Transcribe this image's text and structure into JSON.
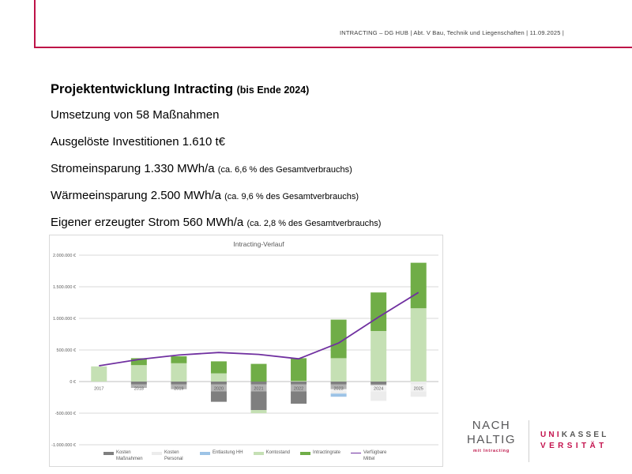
{
  "header": {
    "meta": "INTRACTING – DG HUB |  Abt. V Bau, Technik und Liegenschaften |  11.09.2025 |"
  },
  "content": {
    "title": "Projektentwicklung Intracting ",
    "title_suffix": "(bis Ende 2024)",
    "lines": [
      {
        "main": "Umsetzung von 58 Maßnahmen",
        "small": ""
      },
      {
        "main": "Ausgelöste Investitionen 1.610 t€",
        "small": ""
      },
      {
        "main": "Stromeinsparung 1.330 MWh/a ",
        "small": "(ca. 6,6 % des Gesamtverbrauchs)"
      },
      {
        "main": "Wärmeeinsparung 2.500 MWh/a ",
        "small": "(ca. 9,6 % des Gesamtverbrauchs)"
      },
      {
        "main": "Eigener erzeugter Strom 560 MWh/a ",
        "small": "(ca. 2,8 % des Gesamtverbrauchs)"
      }
    ]
  },
  "chart_data": {
    "type": "bar",
    "stacked": true,
    "title": "Intracting-Verlauf",
    "categories": [
      "2017",
      "2018",
      "2019",
      "2020",
      "2021",
      "2022",
      "2023",
      "2024",
      "2025"
    ],
    "series": [
      {
        "name": "Kosten Maßnahmen",
        "color": "#7f7f7f",
        "values": [
          0,
          -100000,
          -120000,
          -320000,
          -450000,
          -350000,
          -120000,
          -60000,
          0
        ]
      },
      {
        "name": "Kosten Personal",
        "color": "#ececec",
        "values": [
          0,
          0,
          0,
          0,
          0,
          0,
          -70000,
          -245000,
          -240000
        ]
      },
      {
        "name": "Entlastung HH",
        "color": "#9dc3e6",
        "values": [
          0,
          0,
          0,
          0,
          0,
          0,
          -50000,
          0,
          0
        ]
      },
      {
        "name": "Kontostand",
        "color": "#c5e0b4",
        "values": [
          240000,
          260000,
          290000,
          130000,
          -50000,
          10000,
          370000,
          800000,
          1160000
        ]
      },
      {
        "name": "Intractingrate",
        "color": "#70ad47",
        "values": [
          0,
          110000,
          110000,
          190000,
          280000,
          360000,
          610000,
          610000,
          720000
        ]
      }
    ],
    "line_series": {
      "name": "Verfügbare Mittel",
      "color": "#7030a0",
      "values": [
        250000,
        350000,
        420000,
        460000,
        430000,
        360000,
        610000,
        1020000,
        1410000
      ]
    },
    "ylim": [
      -1000000,
      2000000
    ],
    "yticks": [
      2000000,
      1500000,
      1000000,
      500000,
      0,
      -500000,
      -1000000
    ],
    "ytick_labels": [
      "2.000.000 €",
      "1.500.000 €",
      "1.000.000 €",
      "500.000 €",
      "0 €",
      "-500.000 €",
      "-1.000.000 €"
    ],
    "grid": true,
    "legend_position": "bottom"
  },
  "footer": {
    "nachhaltig": {
      "line1": "NACH",
      "line2": "HALTIG",
      "tagline": "mit Intracting"
    },
    "unikassel": {
      "part1": "UNI",
      "part2": "KASSEL",
      "line2": "VERSITÄT"
    }
  },
  "colors": {
    "brand": "#be1348",
    "logo_red": "#c4134e",
    "logo_gray": "#575756"
  }
}
